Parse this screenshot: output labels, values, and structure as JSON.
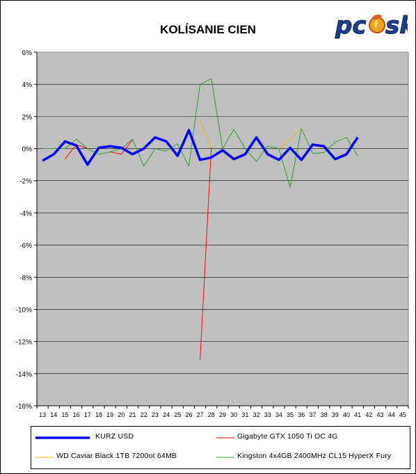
{
  "chart_data": {
    "type": "line",
    "title": "KOLÍSANIE CIEN",
    "xlabel": "",
    "ylabel": "",
    "x": [
      13,
      14,
      15,
      16,
      17,
      18,
      19,
      20,
      21,
      22,
      23,
      24,
      25,
      26,
      27,
      28,
      29,
      30,
      31,
      32,
      33,
      34,
      35,
      36,
      37,
      38,
      39,
      40,
      41,
      42,
      43,
      44,
      45
    ],
    "x_tick_labels": [
      "13",
      "14",
      "15",
      "16",
      "17",
      "18",
      "19",
      "20",
      "21",
      "22",
      "23",
      "24",
      "25",
      "26",
      "27",
      "28",
      "29",
      "30",
      "31",
      "32",
      "33",
      "34",
      "35",
      "36",
      "37",
      "38",
      "39",
      "40",
      "41",
      "42",
      "43",
      "44",
      "45"
    ],
    "ylim": [
      -16,
      6
    ],
    "y_ticks": [
      6,
      4,
      2,
      0,
      -2,
      -4,
      -6,
      -8,
      -10,
      -12,
      -14,
      -16
    ],
    "y_tick_labels": [
      "6%",
      "4%",
      "2%",
      "0%",
      "-2%",
      "-4%",
      "-6%",
      "-8%",
      "-10%",
      "-12%",
      "-14%",
      "-16%"
    ],
    "grid": "horizontal",
    "legend_position": "bottom",
    "series": [
      {
        "name": "Gigabyte GTX 1050 Ti OC 4G",
        "color": "#ff0000",
        "width": 1,
        "values": [
          null,
          null,
          -0.65,
          0.25,
          0.0,
          null,
          -0.2,
          -0.35,
          0.55,
          null,
          null,
          null,
          null,
          null,
          -13.15,
          0.1,
          null,
          null,
          null,
          null,
          null,
          null,
          null,
          null,
          null,
          null,
          null,
          null,
          null,
          null,
          null,
          null,
          null
        ]
      },
      {
        "name": "WD Caviar Black 1TB 7200ot 64MB",
        "color": "#ffb000",
        "width": 1,
        "values": [
          null,
          null,
          null,
          null,
          null,
          null,
          null,
          null,
          null,
          null,
          null,
          null,
          null,
          null,
          1.8,
          0.05,
          null,
          null,
          null,
          null,
          null,
          0.0,
          0.6,
          1.25,
          null,
          null,
          null,
          null,
          null,
          null,
          null,
          null,
          null
        ]
      },
      {
        "name": "Kingston 4x4GB 2400MHz CL15 HyperX Fury",
        "color": "#2e9e2e",
        "width": 1,
        "values": [
          0.0,
          0.0,
          0.0,
          0.6,
          0.0,
          -0.35,
          -0.2,
          0.0,
          0.6,
          -1.1,
          0.0,
          -0.15,
          0.3,
          -1.1,
          4.0,
          4.35,
          0.0,
          1.2,
          0.0,
          -0.8,
          0.15,
          0.0,
          -2.4,
          1.25,
          -0.3,
          -0.25,
          0.4,
          0.7,
          -0.45,
          null,
          null,
          null,
          null
        ]
      },
      {
        "name": "KURZ USD",
        "color": "#0000ff",
        "width": 3.5,
        "values": [
          -0.75,
          -0.35,
          0.45,
          0.2,
          -1.0,
          0.05,
          0.15,
          0.05,
          -0.35,
          0.0,
          0.7,
          0.45,
          -0.45,
          1.15,
          -0.7,
          -0.55,
          -0.1,
          -0.65,
          -0.35,
          0.7,
          -0.35,
          -0.7,
          0.05,
          -0.7,
          0.25,
          0.15,
          -0.65,
          -0.35,
          0.7,
          null,
          null,
          null,
          null
        ]
      }
    ],
    "legend_entries": [
      "KURZ USD",
      "Gigabyte GTX 1050 Ti OC 4G",
      "WD Caviar Black 1TB 7200ot 64MB",
      "Kingston 4x4GB 2400MHz CL15 HyperX Fury"
    ]
  },
  "legend_colors": {
    "KURZ USD": "#0000ff",
    "Gigabyte GTX 1050 Ti OC 4G": "#ff0000",
    "WD Caviar Black 1TB 7200ot 64MB": "#ffb000",
    "Kingston 4x4GB 2400MHz CL15 HyperX Fury": "#2e9e2e"
  },
  "logo": {
    "text": "pcusk",
    "icon": "flame-icon"
  }
}
